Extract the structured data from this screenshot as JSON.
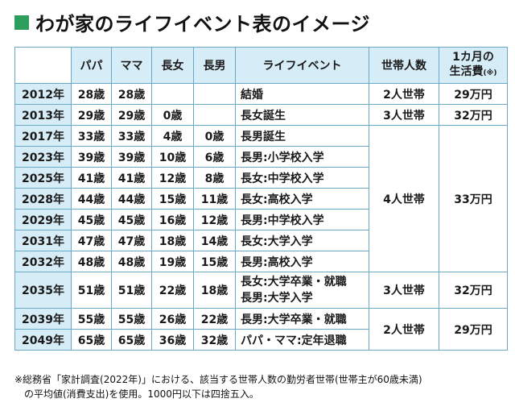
{
  "title": "わが家のライフイベント表のイメージ",
  "headers": {
    "papa": "パパ",
    "mama": "ママ",
    "daughter": "長女",
    "son": "長男",
    "event": "ライフイベント",
    "household": "世帯人数",
    "cost_line1": "1カ月の",
    "cost_line2": "生活費",
    "cost_note": "(※)"
  },
  "rows": [
    {
      "year": "2012年",
      "papa": "28歳",
      "mama": "28歳",
      "daughter": "",
      "son": "",
      "events": [
        "結婚"
      ],
      "household": "2人世帯",
      "cost": "29万円"
    },
    {
      "year": "2013年",
      "papa": "29歳",
      "mama": "29歳",
      "daughter": "0歳",
      "son": "",
      "events": [
        "長女誕生"
      ],
      "household": "3人世帯",
      "cost": "32万円"
    },
    {
      "year": "2017年",
      "papa": "33歳",
      "mama": "33歳",
      "daughter": "4歳",
      "son": "0歳",
      "events": [
        "長男誕生"
      ],
      "household": "4人世帯",
      "cost": "33万円"
    },
    {
      "year": "2023年",
      "papa": "39歳",
      "mama": "39歳",
      "daughter": "10歳",
      "son": "6歳",
      "events": [
        "長男:小学校入学"
      ]
    },
    {
      "year": "2025年",
      "papa": "41歳",
      "mama": "41歳",
      "daughter": "12歳",
      "son": "8歳",
      "events": [
        "長女:中学校入学"
      ]
    },
    {
      "year": "2028年",
      "papa": "44歳",
      "mama": "44歳",
      "daughter": "15歳",
      "son": "11歳",
      "events": [
        "長女:高校入学"
      ]
    },
    {
      "year": "2029年",
      "papa": "45歳",
      "mama": "45歳",
      "daughter": "16歳",
      "son": "12歳",
      "events": [
        "長男:中学校入学"
      ]
    },
    {
      "year": "2031年",
      "papa": "47歳",
      "mama": "47歳",
      "daughter": "18歳",
      "son": "14歳",
      "events": [
        "長女:大学入学"
      ]
    },
    {
      "year": "2032年",
      "papa": "48歳",
      "mama": "48歳",
      "daughter": "19歳",
      "son": "15歳",
      "events": [
        "長男:高校入学"
      ]
    },
    {
      "year": "2035年",
      "papa": "51歳",
      "mama": "51歳",
      "daughter": "22歳",
      "son": "18歳",
      "events": [
        "長女:大学卒業・就職",
        "長男:大学入学"
      ],
      "household": "3人世帯",
      "cost": "32万円"
    },
    {
      "year": "2039年",
      "papa": "55歳",
      "mama": "55歳",
      "daughter": "26歳",
      "son": "22歳",
      "events": [
        "長男:大学卒業・就職"
      ],
      "household": "2人世帯",
      "cost": "29万円"
    },
    {
      "year": "2049年",
      "papa": "65歳",
      "mama": "65歳",
      "daughter": "36歳",
      "son": "32歳",
      "events": [
        "パパ・ママ:定年退職"
      ]
    }
  ],
  "footnote": {
    "line1": "※総務省「家計調査(2022年)」における、該当する世帯人数の勤労者世帯(世帯主が60歳未満)",
    "line2": "　の平均値(消費支出)を使用。1000円以下は四捨五入。"
  }
}
